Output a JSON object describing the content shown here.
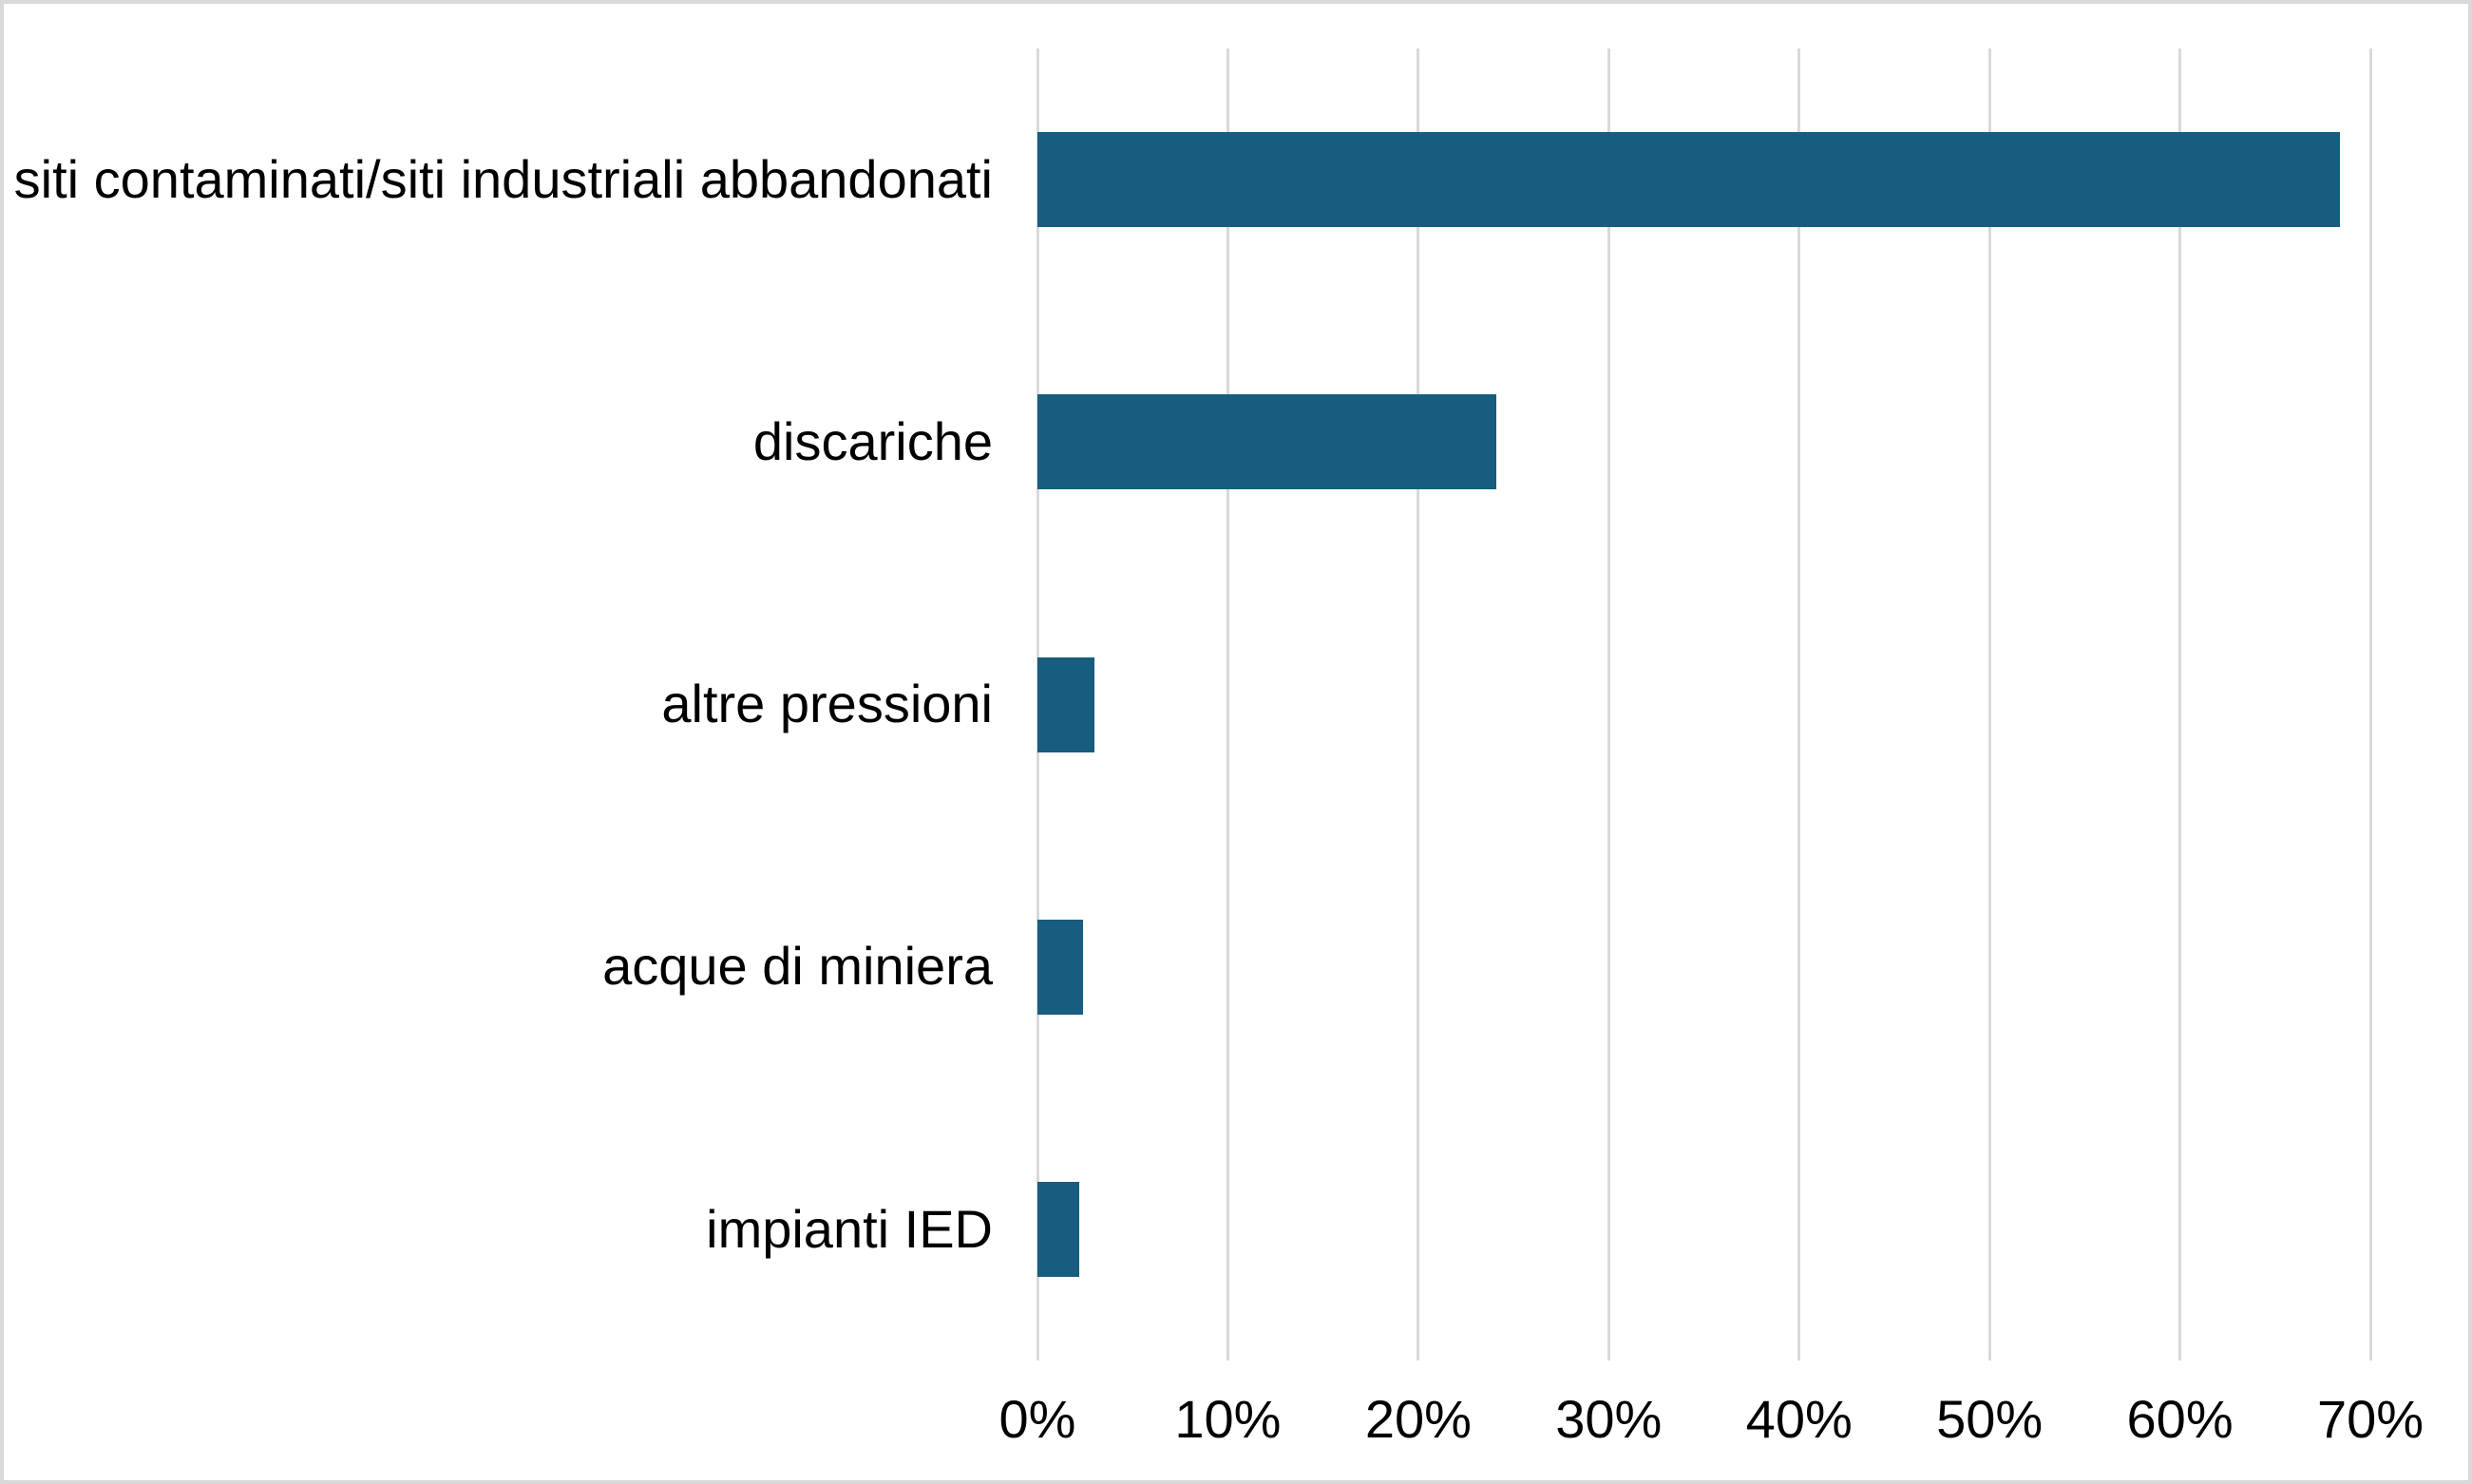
{
  "chart_data": {
    "type": "bar",
    "orientation": "horizontal",
    "title": "",
    "xlabel": "",
    "ylabel": "",
    "categories": [
      "siti contaminati/siti industriali abbandonati",
      "discariche",
      "altre pressioni",
      "acque di miniera",
      "impianti IED"
    ],
    "values": [
      68.4,
      24.1,
      3.0,
      2.4,
      2.2
    ],
    "value_unit": "%",
    "x_ticks": [
      "0%",
      "10%",
      "20%",
      "30%",
      "40%",
      "50%",
      "60%",
      "70%"
    ],
    "x_tick_values": [
      0,
      10,
      20,
      30,
      40,
      50,
      60,
      70
    ],
    "xlim": [
      0,
      70
    ],
    "grid": "vertical-only",
    "legend": "none",
    "colors": {
      "bar_fill": "#165D7F",
      "gridline": "#d9d9d9",
      "frame_border": "#d8d8d8",
      "text": "#000000",
      "background": "#ffffff"
    }
  }
}
